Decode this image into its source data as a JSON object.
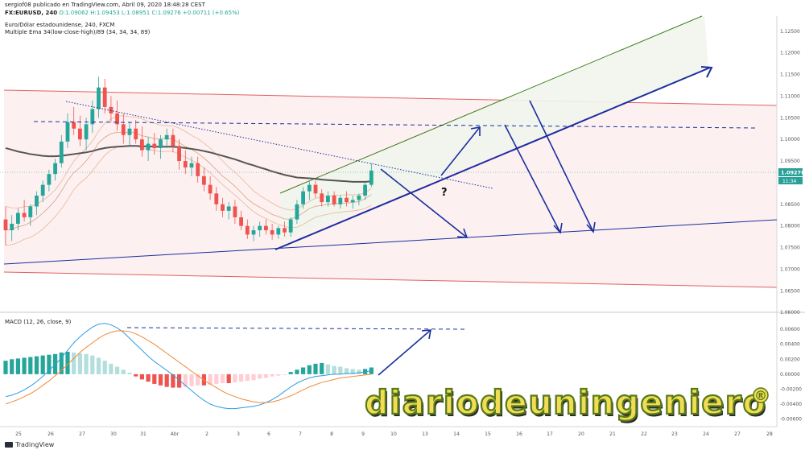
{
  "header": {
    "publisher_line": "sergiof08 publicado en TradingView.com, Abril 09, 2020 18:48:28 CEST",
    "symbol": "FX:EURUSD, 240",
    "quote": "O:1.09062 H:1.09453 L:1.08951 C:1.09276 +0.00711 (+0.65%)",
    "instrument_name": "Euro/Dólar estadounidense, 240, FXCM",
    "indicator_name": "Multiple Ema 34(low-close-high)/89 (34, 34, 34, 89)"
  },
  "macd_header": "MACD (12, 26, close, 9)",
  "footer_logo": "TradingView",
  "watermark": {
    "text": "diariodeuningeniero",
    "mark": "®"
  },
  "price_badges": {
    "last": "1.09276",
    "timer": "11:34"
  },
  "colors": {
    "up": "#26a69a",
    "down": "#ef5350",
    "ema89": "#555555",
    "arrows": "#1a2f9e",
    "green_line": "#3a7d1a",
    "red_line": "#e06060",
    "channel_fill": "#fdeeee",
    "macd_line": "#2f9be0",
    "signal_line": "#f08a3a",
    "badge": "#2aa198"
  },
  "chart_data": [
    {
      "type": "candlestick",
      "pane": "price",
      "x_tick_labels": [
        "25",
        "26",
        "27",
        "30",
        "31",
        "Abr",
        "2",
        "3",
        "6",
        "7",
        "8",
        "9",
        "10",
        "13",
        "14",
        "15",
        "16",
        "17",
        "20",
        "21",
        "22",
        "23",
        "24",
        "27",
        "28"
      ],
      "y_tick_labels": [
        "1.12500",
        "1.12000",
        "1.11500",
        "1.11000",
        "1.10500",
        "1.10000",
        "1.09500",
        "1.09000",
        "1.08500",
        "1.08000",
        "1.07500",
        "1.07000",
        "1.06500",
        "1.06000"
      ],
      "ylim": [
        1.0604,
        1.1285
      ],
      "ohlc": [
        [
          1.0815,
          1.0845,
          1.0755,
          1.079
        ],
        [
          1.079,
          1.0825,
          1.0765,
          1.0805
        ],
        [
          1.0805,
          1.084,
          1.079,
          1.083
        ],
        [
          1.083,
          1.086,
          1.081,
          1.082
        ],
        [
          1.082,
          1.085,
          1.08,
          1.0845
        ],
        [
          1.0845,
          1.088,
          1.0825,
          1.087
        ],
        [
          1.087,
          1.0905,
          1.0855,
          1.0895
        ],
        [
          1.0895,
          1.093,
          1.088,
          1.092
        ],
        [
          1.092,
          1.0955,
          1.0905,
          1.0945
        ],
        [
          1.0945,
          1.101,
          1.0935,
          1.0995
        ],
        [
          1.0995,
          1.106,
          1.098,
          1.104
        ],
        [
          1.104,
          1.1075,
          1.101,
          1.1025
        ],
        [
          1.1025,
          1.1055,
          1.0985,
          1.1
        ],
        [
          1.1,
          1.105,
          1.0975,
          1.1035
        ],
        [
          1.1035,
          1.109,
          1.1015,
          1.107
        ],
        [
          1.107,
          1.1145,
          1.105,
          1.112
        ],
        [
          1.112,
          1.114,
          1.106,
          1.1075
        ],
        [
          1.1075,
          1.11,
          1.104,
          1.106
        ],
        [
          1.106,
          1.109,
          1.102,
          1.1035
        ],
        [
          1.1035,
          1.106,
          1.099,
          1.101
        ],
        [
          1.101,
          1.104,
          1.0985,
          1.1025
        ],
        [
          1.1025,
          1.1045,
          1.099,
          1.1
        ],
        [
          1.1,
          1.103,
          1.096,
          1.0975
        ],
        [
          1.0975,
          1.1005,
          1.095,
          1.099
        ],
        [
          1.099,
          1.1015,
          1.0965,
          1.098
        ],
        [
          1.098,
          1.101,
          1.0955,
          1.1
        ],
        [
          1.1,
          1.1025,
          1.098,
          1.101
        ],
        [
          1.101,
          1.1025,
          1.097,
          1.0985
        ],
        [
          1.0985,
          1.1,
          1.093,
          1.095
        ],
        [
          1.095,
          1.0975,
          1.092,
          1.0935
        ],
        [
          1.0935,
          1.096,
          1.0915,
          1.0945
        ],
        [
          1.0945,
          1.096,
          1.09,
          1.0915
        ],
        [
          1.0915,
          1.0935,
          1.088,
          1.0895
        ],
        [
          1.0895,
          1.0915,
          1.086,
          1.0875
        ],
        [
          1.0875,
          1.089,
          1.0835,
          1.085
        ],
        [
          1.085,
          1.0865,
          1.082,
          1.0835
        ],
        [
          1.0835,
          1.0855,
          1.0815,
          1.0845
        ],
        [
          1.0845,
          1.086,
          1.0805,
          1.082
        ],
        [
          1.082,
          1.0835,
          1.079,
          1.08
        ],
        [
          1.08,
          1.0815,
          1.077,
          1.078
        ],
        [
          1.078,
          1.08,
          1.0765,
          1.079
        ],
        [
          1.079,
          1.081,
          1.0775,
          1.08
        ],
        [
          1.08,
          1.0815,
          1.078,
          1.079
        ],
        [
          1.079,
          1.0805,
          1.0768,
          1.078
        ],
        [
          1.078,
          1.08,
          1.077,
          1.0795
        ],
        [
          1.0795,
          1.081,
          1.0775,
          1.0785
        ],
        [
          1.0785,
          1.082,
          1.0775,
          1.0815
        ],
        [
          1.0815,
          1.086,
          1.0805,
          1.085
        ],
        [
          1.085,
          1.089,
          1.084,
          1.088
        ],
        [
          1.088,
          1.0905,
          1.086,
          1.0895
        ],
        [
          1.0895,
          1.0905,
          1.0865,
          1.0875
        ],
        [
          1.0875,
          1.0885,
          1.0845,
          1.0855
        ],
        [
          1.0855,
          1.088,
          1.0845,
          1.087
        ],
        [
          1.087,
          1.088,
          1.0845,
          1.085
        ],
        [
          1.085,
          1.087,
          1.084,
          1.0865
        ],
        [
          1.0865,
          1.088,
          1.0845,
          1.0855
        ],
        [
          1.0855,
          1.087,
          1.084,
          1.086
        ],
        [
          1.086,
          1.0875,
          1.0848,
          1.087
        ],
        [
          1.087,
          1.09,
          1.086,
          1.0895
        ],
        [
          1.0895,
          1.0945,
          1.089,
          1.0928
        ]
      ],
      "ema89": [
        1.098,
        1.0976,
        1.0972,
        1.0969,
        1.0966,
        1.0964,
        1.0962,
        1.0961,
        1.0961,
        1.0962,
        1.0964,
        1.0966,
        1.0968,
        1.097,
        1.0973,
        1.0977,
        1.098,
        1.0982,
        1.0983,
        1.0984,
        1.0985,
        1.0985,
        1.0984,
        1.0984,
        1.0983,
        1.0983,
        1.0983,
        1.0983,
        1.0982,
        1.098,
        1.0978,
        1.0976,
        1.0973,
        1.097,
        1.0966,
        1.0962,
        1.0958,
        1.0954,
        1.0949,
        1.0944,
        1.094,
        1.0935,
        1.0931,
        1.0926,
        1.0922,
        1.0918,
        1.0915,
        1.0912,
        1.0911,
        1.091,
        1.0909,
        1.0907,
        1.0906,
        1.0905,
        1.0904,
        1.0903,
        1.0902,
        1.0902,
        1.0902,
        1.0903
      ]
    },
    {
      "type": "bar",
      "pane": "macd",
      "y_tick_labels": [
        "0.00600",
        "0.00400",
        "0.00200",
        "0.00000",
        "-0.00200",
        "-0.00400",
        "-0.00600"
      ],
      "ylim": [
        -0.0068,
        0.0072
      ],
      "histogram": [
        0.0018,
        0.002,
        0.0021,
        0.0022,
        0.0023,
        0.0024,
        0.0025,
        0.0026,
        0.0027,
        0.0029,
        0.003,
        0.0029,
        0.0028,
        0.0027,
        0.0025,
        0.0022,
        0.0018,
        0.0014,
        0.001,
        0.0006,
        0.0002,
        -0.0003,
        -0.0007,
        -0.001,
        -0.0013,
        -0.0015,
        -0.0017,
        -0.0018,
        -0.0018,
        -0.0017,
        -0.0016,
        -0.0015,
        -0.0015,
        -0.0014,
        -0.0013,
        -0.0012,
        -0.0012,
        -0.0011,
        -0.001,
        -0.0009,
        -0.0008,
        -0.0006,
        -0.0005,
        -0.0003,
        -0.0002,
        -0.0001,
        0.0003,
        0.0006,
        0.0009,
        0.0012,
        0.0014,
        0.0015,
        0.0013,
        0.0011,
        0.001,
        0.0008,
        0.0007,
        0.0006,
        0.0007,
        0.0009
      ],
      "macd": [
        -0.003,
        -0.0028,
        -0.0025,
        -0.0021,
        -0.0016,
        -0.001,
        -0.0003,
        0.0005,
        0.0013,
        0.0022,
        0.0032,
        0.0042,
        0.005,
        0.0057,
        0.0063,
        0.0067,
        0.0068,
        0.0066,
        0.0062,
        0.0056,
        0.0048,
        0.004,
        0.0032,
        0.0024,
        0.0017,
        0.0011,
        0.0005,
        -0.0001,
        -0.0008,
        -0.0015,
        -0.0022,
        -0.0029,
        -0.0035,
        -0.004,
        -0.0043,
        -0.0045,
        -0.0046,
        -0.0046,
        -0.0045,
        -0.0044,
        -0.0043,
        -0.0041,
        -0.0038,
        -0.0034,
        -0.0029,
        -0.0023,
        -0.0017,
        -0.0012,
        -0.0008,
        -0.0005,
        -0.0003,
        -0.0002,
        -0.0001,
        0.0,
        0.0,
        0.0001,
        0.0001,
        0.0002,
        0.0003,
        0.0005
      ],
      "signal": [
        -0.004,
        -0.0037,
        -0.0034,
        -0.003,
        -0.0026,
        -0.0021,
        -0.0015,
        -0.0009,
        -0.0002,
        0.0005,
        0.0013,
        0.0021,
        0.0029,
        0.0036,
        0.0042,
        0.0048,
        0.0053,
        0.0056,
        0.0058,
        0.0058,
        0.0057,
        0.0054,
        0.005,
        0.0045,
        0.004,
        0.0034,
        0.0028,
        0.0022,
        0.0016,
        0.001,
        0.0004,
        -0.0002,
        -0.0008,
        -0.0013,
        -0.0018,
        -0.0023,
        -0.0027,
        -0.003,
        -0.0033,
        -0.0035,
        -0.0037,
        -0.0038,
        -0.0038,
        -0.0037,
        -0.0035,
        -0.0032,
        -0.0029,
        -0.0025,
        -0.0021,
        -0.0017,
        -0.0014,
        -0.0011,
        -0.0009,
        -0.0007,
        -0.0005,
        -0.0004,
        -0.0003,
        -0.0002,
        -0.0001,
        0.0
      ]
    }
  ]
}
